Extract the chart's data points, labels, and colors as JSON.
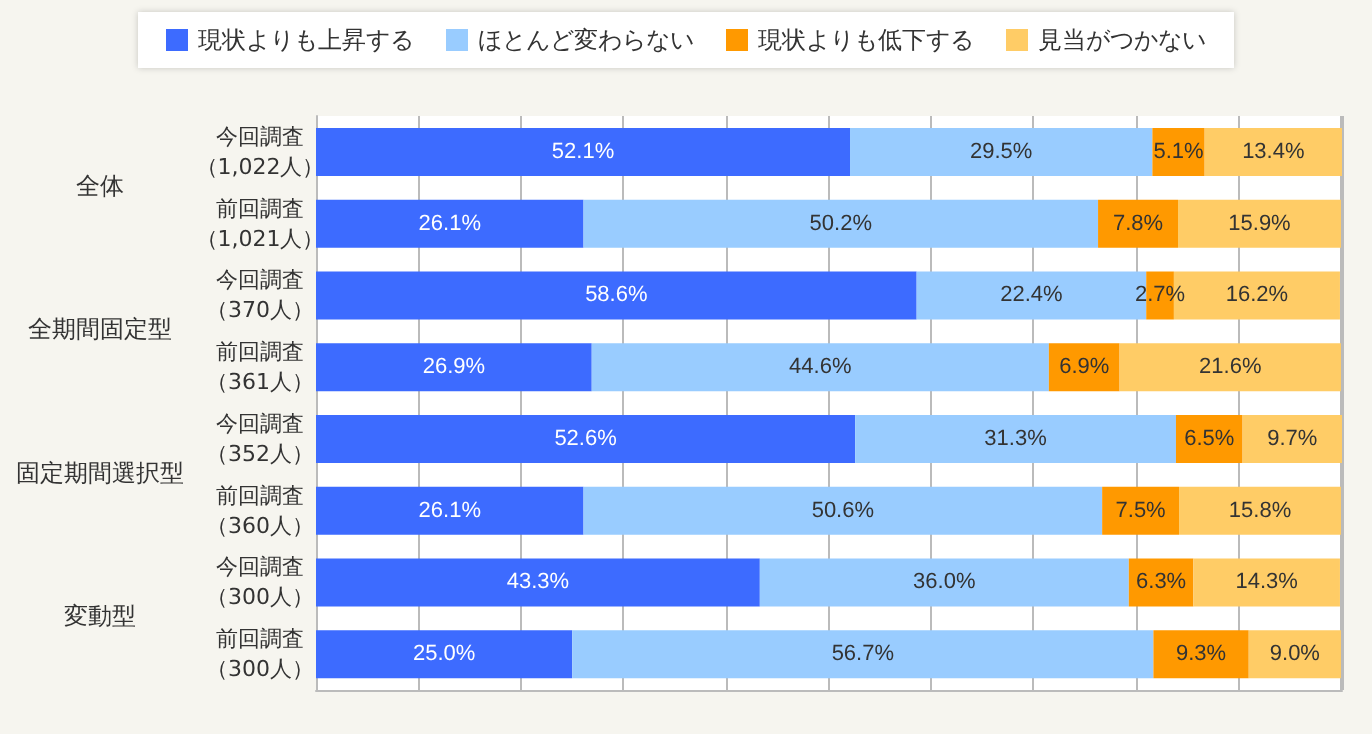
{
  "chart_data": {
    "type": "bar",
    "orientation": "horizontal",
    "stacked": true,
    "categories": [
      "今回調査（1,022人）",
      "前回調査（1,021人）",
      "今回調査（370人）",
      "前回調査（361人）",
      "今回調査（352人）",
      "前回調査（360人）",
      "今回調査（300人）",
      "前回調査（300人）"
    ],
    "series": [
      {
        "name": "現状よりも上昇する",
        "color": "#3d6bff",
        "values": [
          52.1,
          26.1,
          58.6,
          26.9,
          52.6,
          26.1,
          43.3,
          25.0
        ],
        "value_labels": [
          "52.1%",
          "26.1%",
          "58.6%",
          "26.9%",
          "52.6%",
          "26.1%",
          "43.3%",
          "25.0%"
        ]
      },
      {
        "name": "ほとんど変わらない",
        "color": "#99ccff",
        "values": [
          29.5,
          50.2,
          22.4,
          44.6,
          31.3,
          50.6,
          36.0,
          56.7
        ],
        "value_labels": [
          "29.5%",
          "50.2%",
          "22.4%",
          "44.6%",
          "31.3%",
          "50.6%",
          "36.0%",
          "56.7%"
        ]
      },
      {
        "name": "現状よりも低下する",
        "color": "#ff9900",
        "values": [
          5.1,
          7.8,
          2.7,
          6.9,
          6.5,
          7.5,
          6.3,
          9.3
        ],
        "value_labels": [
          "5.1%",
          "7.8%",
          "2.7%",
          "6.9%",
          "6.5%",
          "7.5%",
          "6.3%",
          "9.3%"
        ]
      },
      {
        "name": "見当がつかない",
        "color": "#ffcc66",
        "values": [
          13.4,
          15.9,
          16.2,
          21.6,
          9.7,
          15.8,
          14.3,
          9.0
        ],
        "value_labels": [
          "13.4%",
          "15.9%",
          "16.2%",
          "21.6%",
          "9.7%",
          "15.8%",
          "14.3%",
          "9.0%"
        ]
      }
    ],
    "annotations": [
      "全体",
      "全期間固定型",
      "固定期間選択型",
      "変動型"
    ],
    "grid": "x",
    "legend": "top",
    "tick_labels": "y"
  }
}
